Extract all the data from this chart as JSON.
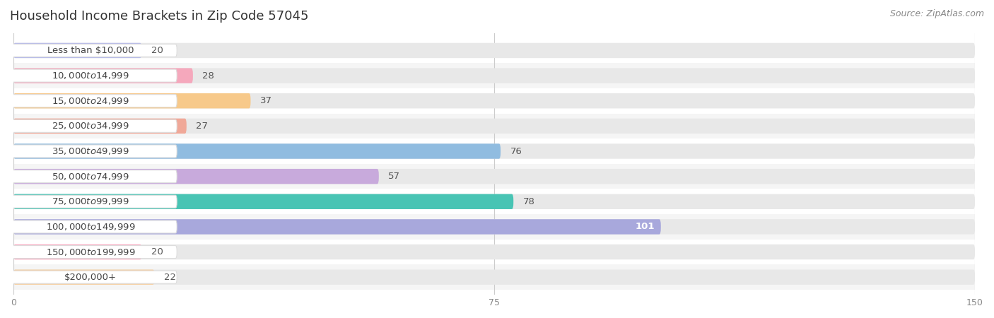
{
  "title": "Household Income Brackets in Zip Code 57045",
  "source": "Source: ZipAtlas.com",
  "categories": [
    "Less than $10,000",
    "$10,000 to $14,999",
    "$15,000 to $24,999",
    "$25,000 to $34,999",
    "$35,000 to $49,999",
    "$50,000 to $74,999",
    "$75,000 to $99,999",
    "$100,000 to $149,999",
    "$150,000 to $199,999",
    "$200,000+"
  ],
  "values": [
    20,
    28,
    37,
    27,
    76,
    57,
    78,
    101,
    20,
    22
  ],
  "bar_colors": [
    "#b8bce8",
    "#f5a8bc",
    "#f7c98a",
    "#f0a898",
    "#90bce0",
    "#c8aadc",
    "#48c4b4",
    "#a8a8dc",
    "#f9a8c0",
    "#f7cfa0"
  ],
  "row_colors": [
    "#ffffff",
    "#f5f5f5"
  ],
  "xlim": [
    0,
    150
  ],
  "xticks": [
    0,
    75,
    150
  ],
  "background_color": "#ffffff",
  "bar_bg_color": "#e8e8e8",
  "title_fontsize": 13,
  "source_fontsize": 9,
  "label_fontsize": 9.5,
  "value_fontsize": 9.5,
  "bar_height": 0.6,
  "label_inside_color": "#ffffff",
  "label_outside_color": "#555555",
  "label_pill_color": "#ffffff",
  "label_text_color": "#444444"
}
